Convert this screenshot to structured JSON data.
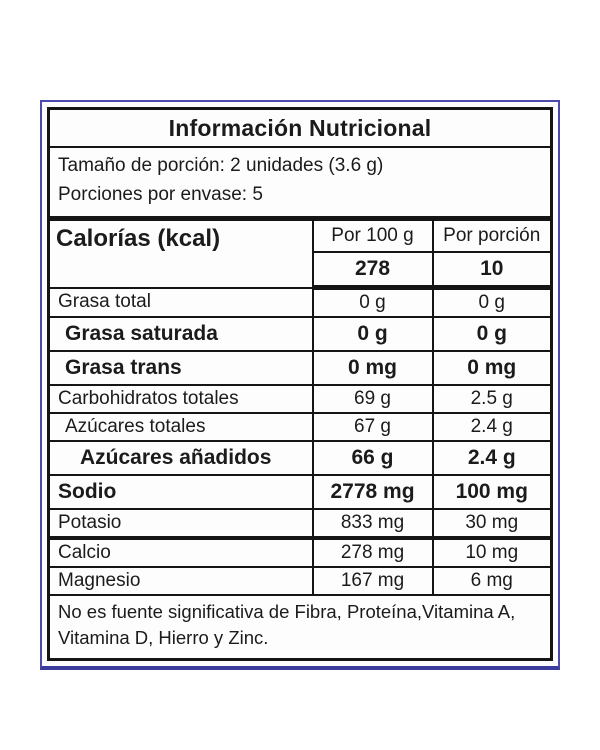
{
  "label": {
    "title": "Información Nutricional",
    "serving_size": "Tamaño de porción: 2 unidades (3.6 g)",
    "servings_per_container": "Porciones por envase: 5",
    "calories": {
      "label": "Calorías (kcal)",
      "col_per_100g": "Por 100 g",
      "col_per_portion": "Por porción",
      "per_100g": "278",
      "per_portion": "10"
    },
    "rows": [
      {
        "name": "Grasa total",
        "per_100g": "0 g",
        "per_portion": "0 g"
      },
      {
        "name": "Grasa saturada",
        "per_100g": "0 g",
        "per_portion": "0 g"
      },
      {
        "name": "Grasa trans",
        "per_100g": "0 mg",
        "per_portion": "0 mg"
      },
      {
        "name": "Carbohidratos totales",
        "per_100g": "69 g",
        "per_portion": "2.5 g"
      },
      {
        "name": "Azúcares totales",
        "per_100g": "67 g",
        "per_portion": "2.4 g"
      },
      {
        "name": "Azúcares añadidos",
        "per_100g": "66 g",
        "per_portion": "2.4 g"
      },
      {
        "name": "Sodio",
        "per_100g": "2778 mg",
        "per_portion": "100 mg"
      },
      {
        "name": "Potasio",
        "per_100g": "833 mg",
        "per_portion": "30 mg"
      },
      {
        "name": "Calcio",
        "per_100g": "278 mg",
        "per_portion": "10 mg"
      },
      {
        "name": "Magnesio",
        "per_100g": "167 mg",
        "per_portion": "6 mg"
      }
    ],
    "footnote": "No es fuente significativa de Fibra, Proteína,Vitamina A, Vitamina D, Hierro y Zinc.",
    "colors": {
      "frame_border": "#4a4aab",
      "frame_border_bottom": "#3c3c9c",
      "table_border": "#151515"
    }
  }
}
